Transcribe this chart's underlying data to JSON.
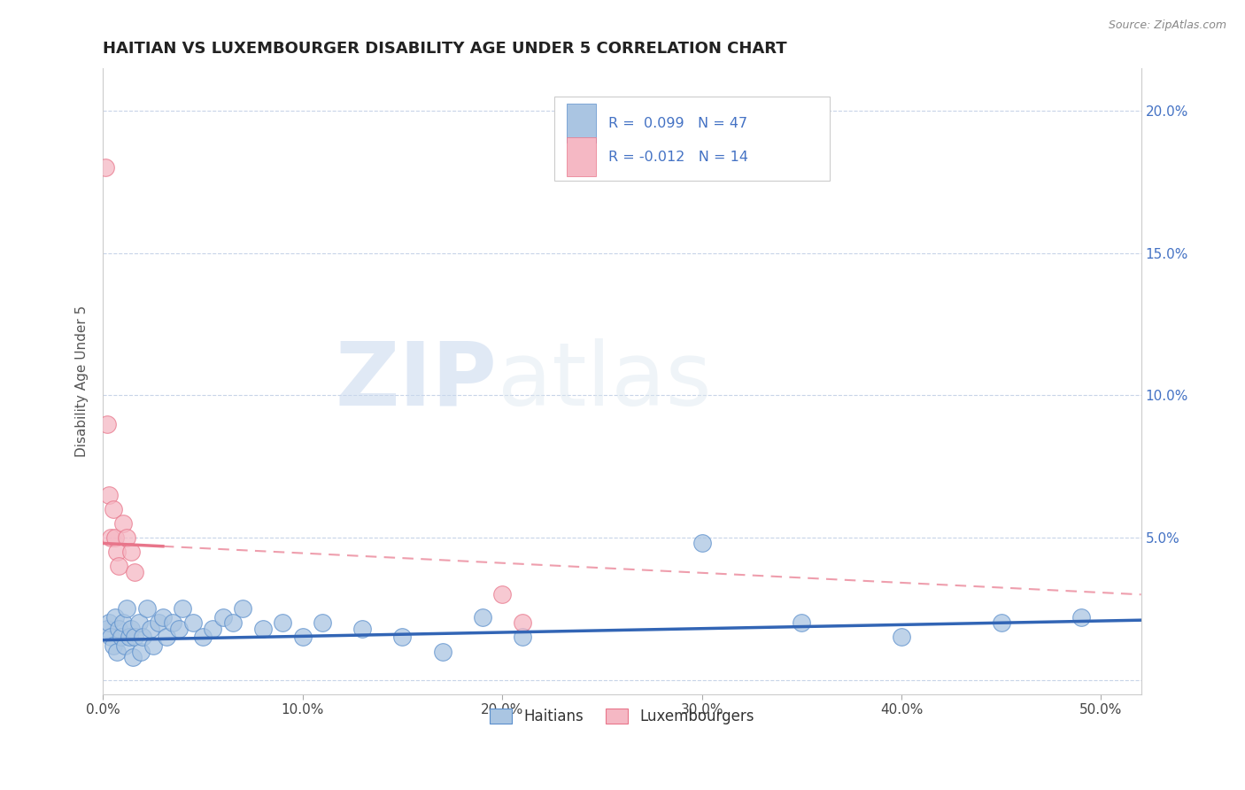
{
  "title": "HAITIAN VS LUXEMBOURGER DISABILITY AGE UNDER 5 CORRELATION CHART",
  "source_text": "Source: ZipAtlas.com",
  "ylabel": "Disability Age Under 5",
  "xlim": [
    0.0,
    0.52
  ],
  "ylim": [
    -0.005,
    0.215
  ],
  "xticks": [
    0.0,
    0.1,
    0.2,
    0.3,
    0.4,
    0.5
  ],
  "yticks": [
    0.0,
    0.05,
    0.1,
    0.15,
    0.2
  ],
  "xtick_labels": [
    "0.0%",
    "10.0%",
    "20.0%",
    "30.0%",
    "40.0%",
    "50.0%"
  ],
  "ytick_labels": [
    "",
    "5.0%",
    "10.0%",
    "15.0%",
    "20.0%"
  ],
  "right_ytick_labels": [
    "",
    "5.0%",
    "10.0%",
    "15.0%",
    "20.0%"
  ],
  "haitian_color": "#aac5e2",
  "luxembourger_color": "#f5b8c4",
  "haitian_edge_color": "#5b8fcc",
  "luxembourger_edge_color": "#e8758a",
  "haitian_line_color": "#3265b5",
  "luxembourger_line_color": "#e8758a",
  "legend_R1": "R =  0.099",
  "legend_N1": "N = 47",
  "legend_R2": "R = -0.012",
  "legend_N2": "N = 14",
  "legend_label1": "Haitians",
  "legend_label2": "Luxembourgers",
  "watermark_zip": "ZIP",
  "watermark_atlas": "atlas",
  "title_fontsize": 13,
  "axis_label_fontsize": 11,
  "tick_fontsize": 11,
  "haitian_x": [
    0.002,
    0.003,
    0.004,
    0.005,
    0.006,
    0.007,
    0.008,
    0.009,
    0.01,
    0.011,
    0.012,
    0.013,
    0.014,
    0.015,
    0.016,
    0.018,
    0.019,
    0.02,
    0.022,
    0.024,
    0.025,
    0.028,
    0.03,
    0.032,
    0.035,
    0.038,
    0.04,
    0.045,
    0.05,
    0.055,
    0.06,
    0.065,
    0.07,
    0.08,
    0.09,
    0.1,
    0.11,
    0.13,
    0.15,
    0.17,
    0.19,
    0.21,
    0.3,
    0.35,
    0.4,
    0.45,
    0.49
  ],
  "haitian_y": [
    0.018,
    0.02,
    0.015,
    0.012,
    0.022,
    0.01,
    0.018,
    0.015,
    0.02,
    0.012,
    0.025,
    0.015,
    0.018,
    0.008,
    0.015,
    0.02,
    0.01,
    0.015,
    0.025,
    0.018,
    0.012,
    0.02,
    0.022,
    0.015,
    0.02,
    0.018,
    0.025,
    0.02,
    0.015,
    0.018,
    0.022,
    0.02,
    0.025,
    0.018,
    0.02,
    0.015,
    0.02,
    0.018,
    0.015,
    0.01,
    0.022,
    0.015,
    0.048,
    0.02,
    0.015,
    0.02,
    0.022
  ],
  "luxembourger_x": [
    0.001,
    0.002,
    0.003,
    0.004,
    0.005,
    0.006,
    0.007,
    0.008,
    0.01,
    0.012,
    0.014,
    0.016,
    0.2,
    0.21
  ],
  "luxembourger_y": [
    0.18,
    0.09,
    0.065,
    0.05,
    0.06,
    0.05,
    0.045,
    0.04,
    0.055,
    0.05,
    0.045,
    0.038,
    0.03,
    0.02
  ],
  "haitian_trend_x0": 0.0,
  "haitian_trend_x1": 0.52,
  "haitian_trend_y0": 0.014,
  "haitian_trend_y1": 0.021,
  "lux_trend_x0": 0.0,
  "lux_trend_x1": 0.52,
  "lux_trend_y0": 0.048,
  "lux_trend_y1": 0.03,
  "background_color": "#ffffff",
  "grid_color": "#c8d4e8",
  "plot_bg_color": "#ffffff"
}
